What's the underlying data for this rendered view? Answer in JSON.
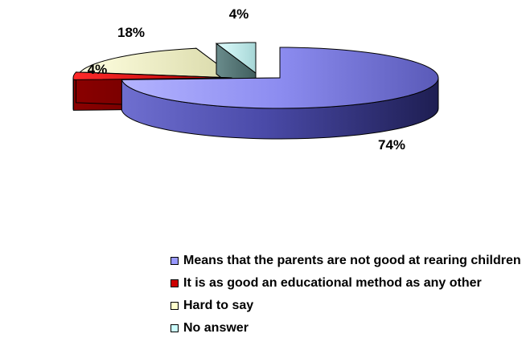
{
  "chart_data": {
    "type": "pie",
    "style": "3d-exploded",
    "categories": [
      "Means that the parents are not good at rearing children",
      "It is as good an educational method as any other",
      "Hard to say",
      "No answer"
    ],
    "values": [
      74,
      4,
      18,
      4
    ],
    "data_labels": [
      "74%",
      "4%",
      "18%",
      "4%"
    ],
    "colors": [
      "#9999ff",
      "#cc0000",
      "#ffffcc",
      "#ccffff"
    ],
    "legend_position": "bottom"
  }
}
